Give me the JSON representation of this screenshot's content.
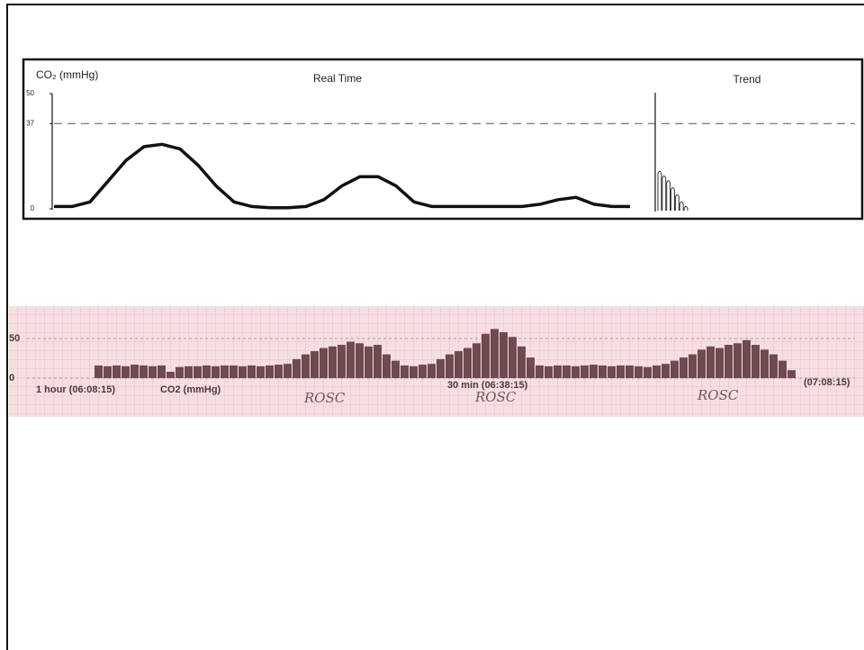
{
  "chart_data": [
    {
      "type": "line",
      "title": "Real Time",
      "y_label": "CO₂ (mmHg)",
      "x": [
        0,
        1,
        2,
        3,
        4,
        5,
        6,
        7,
        8,
        9,
        10,
        11,
        12,
        13,
        14,
        15,
        16,
        17,
        18,
        19,
        20,
        21,
        22,
        23,
        24,
        25,
        26,
        27,
        28,
        29,
        30,
        31,
        32
      ],
      "values": [
        1,
        1,
        3,
        12,
        21,
        27,
        28,
        26,
        19,
        10,
        3,
        1,
        0.5,
        0.5,
        1,
        4,
        10,
        14,
        14,
        10,
        3,
        1,
        1,
        1,
        1,
        1,
        1,
        2,
        4,
        5,
        2,
        1,
        1
      ],
      "color": "#111111",
      "xlim": [
        0,
        32
      ],
      "ylim": [
        0,
        50
      ],
      "yticks": [
        0,
        37,
        50
      ],
      "reference_line": 37
    },
    {
      "type": "bar",
      "title": "Trend",
      "values": [
        17,
        15,
        13,
        10,
        7,
        4,
        2
      ],
      "color": "#333333",
      "ylim": [
        0,
        50
      ]
    },
    {
      "type": "bar",
      "y_label": "CO2 (mmHg)",
      "annotations": [
        "1 hour (06:08:15)",
        "30 min (06:38:15)",
        "(07:08:15)",
        "ROSC",
        "ROSC",
        "ROSC"
      ],
      "values": [
        16,
        15,
        16,
        15,
        17,
        16,
        15,
        16,
        8,
        14,
        15,
        15,
        16,
        15,
        16,
        16,
        15,
        16,
        15,
        16,
        17,
        18,
        24,
        30,
        34,
        38,
        40,
        42,
        46,
        44,
        40,
        42,
        30,
        22,
        16,
        15,
        17,
        18,
        24,
        30,
        34,
        38,
        44,
        56,
        62,
        58,
        52,
        40,
        26,
        16,
        15,
        16,
        16,
        15,
        16,
        17,
        16,
        15,
        16,
        16,
        15,
        14,
        16,
        18,
        22,
        26,
        30,
        36,
        40,
        38,
        42,
        44,
        48,
        42,
        36,
        30,
        22,
        10
      ],
      "color": "#6e4b4f",
      "ylim": [
        0,
        70
      ],
      "yticks": [
        0,
        50
      ]
    }
  ]
}
